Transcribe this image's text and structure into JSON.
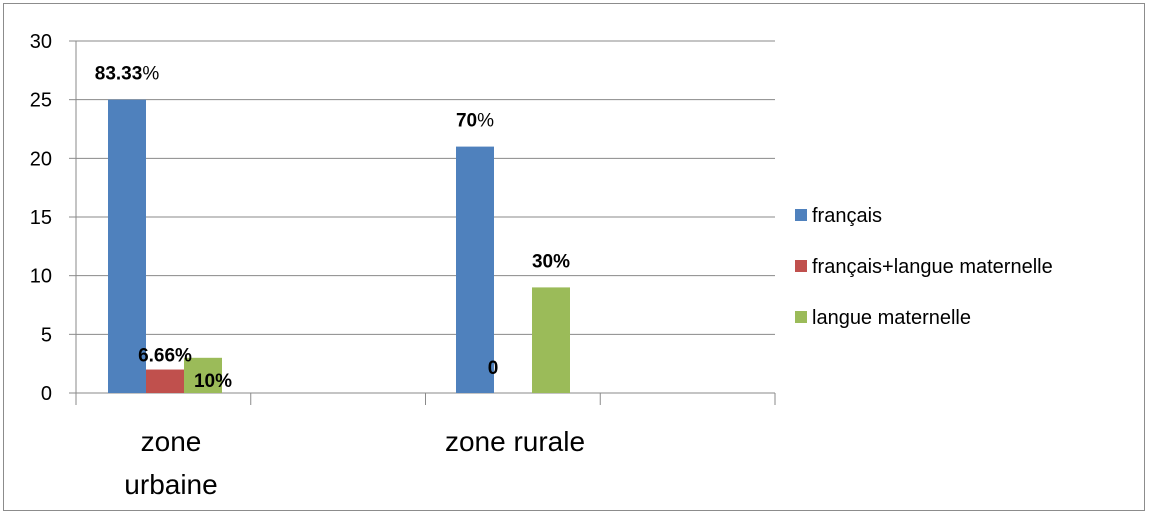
{
  "chart_data": {
    "type": "bar",
    "title": "",
    "xlabel": "",
    "ylabel": "",
    "ylim": [
      0,
      30
    ],
    "yticks": [
      0,
      5,
      10,
      15,
      20,
      25,
      30
    ],
    "grid": true,
    "legend_position": "right",
    "categories": [
      [
        "zone",
        "urbaine"
      ],
      [
        "zone rurale"
      ]
    ],
    "series": [
      {
        "name": "français",
        "color": "#4F81BD",
        "values": [
          25,
          21
        ],
        "labels": [
          [
            "83.33",
            "%"
          ],
          [
            "70",
            "%"
          ]
        ]
      },
      {
        "name": "français+langue maternelle",
        "color": "#C0504D",
        "values": [
          2,
          0
        ],
        "labels": [
          [
            "6.66%",
            ""
          ],
          [
            "0",
            ""
          ]
        ]
      },
      {
        "name": "langue maternelle",
        "color": "#9BBB59",
        "values": [
          3,
          9
        ],
        "labels": [
          [
            "10%",
            ""
          ],
          [
            "30%",
            ""
          ]
        ]
      }
    ]
  }
}
